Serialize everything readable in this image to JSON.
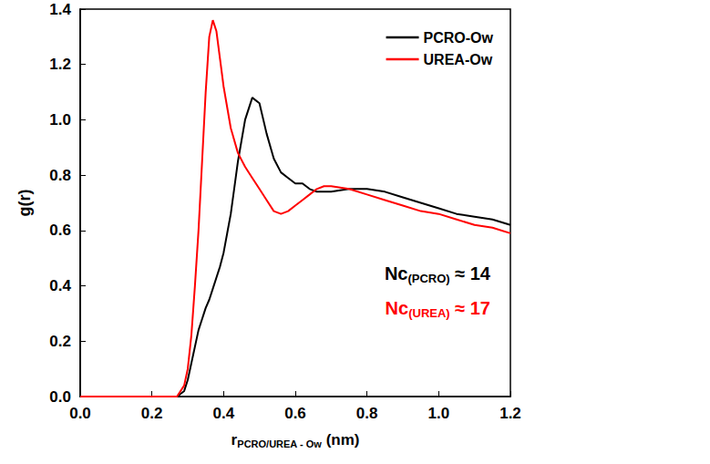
{
  "chart_data": {
    "type": "line",
    "xlabel": {
      "base": "r",
      "sub": "PCRO/UREA - Ow",
      "after": " (nm)"
    },
    "ylabel": "g(r)",
    "x": [
      0.0,
      0.1,
      0.2,
      0.27,
      0.29,
      0.3,
      0.31,
      0.32,
      0.33,
      0.34,
      0.35,
      0.36,
      0.37,
      0.38,
      0.39,
      0.4,
      0.42,
      0.44,
      0.46,
      0.48,
      0.5,
      0.52,
      0.54,
      0.56,
      0.58,
      0.6,
      0.62,
      0.64,
      0.66,
      0.68,
      0.7,
      0.75,
      0.8,
      0.85,
      0.9,
      0.95,
      1.0,
      1.05,
      1.1,
      1.15,
      1.2
    ],
    "series": [
      {
        "name": "PCRO-Ow",
        "color": "#000000",
        "values": [
          0,
          0,
          0,
          0,
          0.02,
          0.06,
          0.12,
          0.18,
          0.24,
          0.28,
          0.32,
          0.35,
          0.39,
          0.43,
          0.47,
          0.52,
          0.66,
          0.85,
          1.0,
          1.08,
          1.06,
          0.95,
          0.86,
          0.81,
          0.79,
          0.77,
          0.77,
          0.75,
          0.74,
          0.74,
          0.74,
          0.75,
          0.75,
          0.74,
          0.72,
          0.7,
          0.68,
          0.66,
          0.65,
          0.64,
          0.62
        ]
      },
      {
        "name": "UREA-Ow",
        "color": "#ff0000",
        "values": [
          0,
          0,
          0,
          0,
          0.04,
          0.1,
          0.22,
          0.4,
          0.6,
          0.85,
          1.1,
          1.3,
          1.36,
          1.32,
          1.22,
          1.12,
          0.97,
          0.88,
          0.83,
          0.79,
          0.75,
          0.71,
          0.67,
          0.66,
          0.67,
          0.69,
          0.71,
          0.73,
          0.75,
          0.76,
          0.76,
          0.75,
          0.73,
          0.71,
          0.69,
          0.67,
          0.66,
          0.64,
          0.62,
          0.61,
          0.59
        ]
      }
    ],
    "xlim": [
      0,
      1.2
    ],
    "xticks": [
      {
        "value": 0,
        "label": "0.0"
      },
      {
        "value": 0.2,
        "label": "0.2"
      },
      {
        "value": 0.4,
        "label": "0.4"
      },
      {
        "value": 0.6,
        "label": "0.6"
      },
      {
        "value": 0.8,
        "label": "0.8"
      },
      {
        "value": 1.0,
        "label": "1.0"
      },
      {
        "value": 1.2,
        "label": "1.2"
      }
    ],
    "ylim": [
      0,
      1.4
    ],
    "yticks": [
      {
        "value": 0,
        "label": "0.0"
      },
      {
        "value": 0.2,
        "label": "0.2"
      },
      {
        "value": 0.4,
        "label": "0.4"
      },
      {
        "value": 0.6,
        "label": "0.6"
      },
      {
        "value": 0.8,
        "label": "0.8"
      },
      {
        "value": 1.0,
        "label": "1.0"
      },
      {
        "value": 1.2,
        "label": "1.2"
      },
      {
        "value": 1.4,
        "label": "1.4"
      }
    ],
    "grid": false,
    "legend": "upper right",
    "annotations": [
      {
        "base": "Nc",
        "sub": "(PCRO)",
        "after": " ≈ 14",
        "color": "#000000"
      },
      {
        "base": "Nc",
        "sub": "(UREA)",
        "after": " ≈ 17",
        "color": "#ff0000"
      }
    ]
  }
}
